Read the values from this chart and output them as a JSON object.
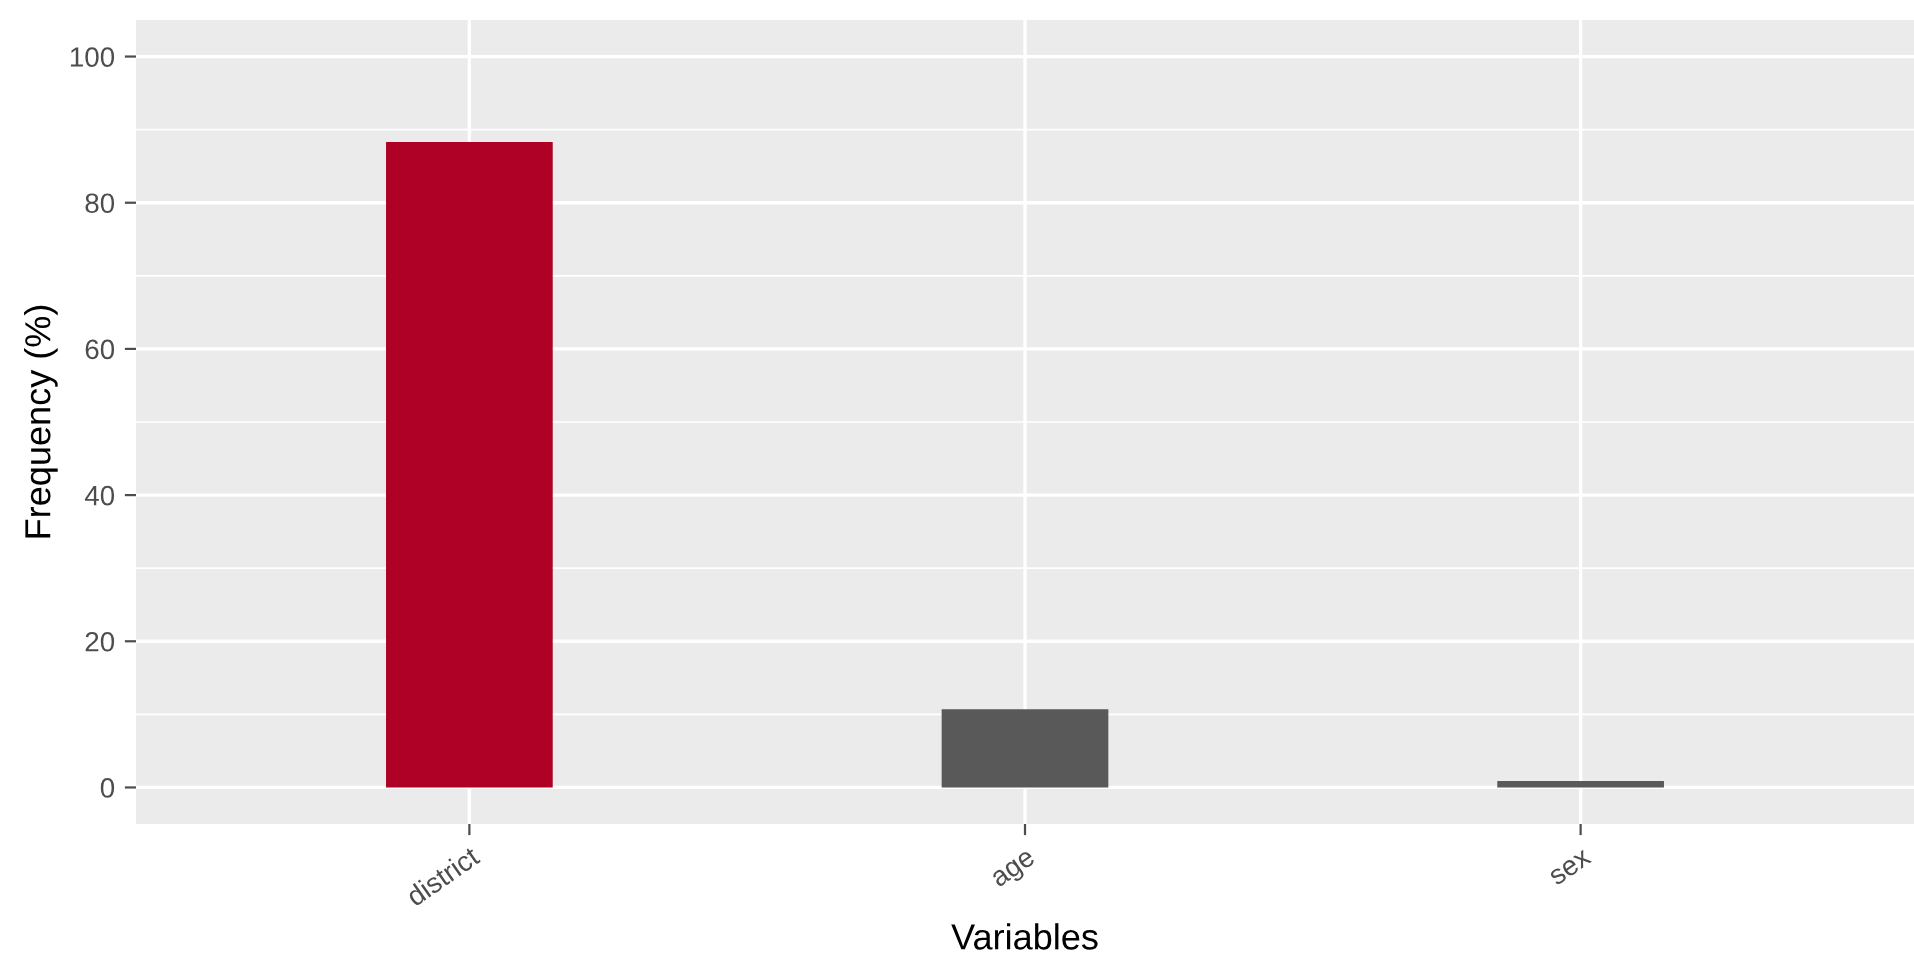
{
  "chart_data": {
    "type": "bar",
    "xlabel": "Variables",
    "ylabel": "Frequency (%)",
    "categories": [
      "district",
      "age",
      "sex"
    ],
    "values": [
      88.3,
      10.7,
      0.9
    ],
    "colors": [
      "#af0025",
      "#595959",
      "#595959"
    ],
    "ylim": [
      -5,
      105
    ],
    "yticks": [
      0,
      20,
      40,
      60,
      80,
      100
    ],
    "grid": true,
    "legend": false
  }
}
